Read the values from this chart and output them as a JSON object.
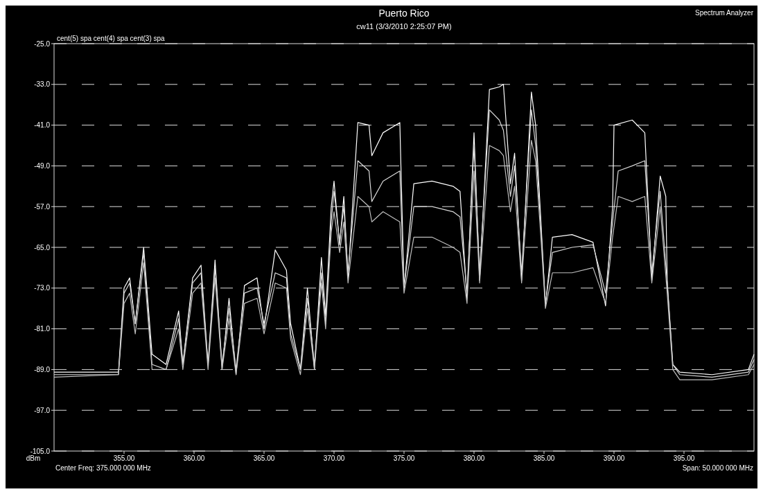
{
  "chart_data": {
    "type": "line",
    "title": "Puerto Rico",
    "subtitle": "cw11 (3/3/2010 2:25:07 PM)",
    "ylabel": "dBm",
    "annotations": [
      "Spectrum Analyzer",
      "cent(5) spa  cent(4) spa  cent(3) spa",
      "Center Freq: 375.000 000 MHz",
      "Span: 50.000 000 MHz"
    ],
    "xlim": [
      350,
      400
    ],
    "xticks": [
      {
        "value": 355,
        "label": "355.00"
      },
      {
        "value": 360,
        "label": "360.00"
      },
      {
        "value": 365,
        "label": "365.00"
      },
      {
        "value": 370,
        "label": "370.00"
      },
      {
        "value": 375,
        "label": "375.00"
      },
      {
        "value": 380,
        "label": "380.00"
      },
      {
        "value": 385,
        "label": "385.00"
      },
      {
        "value": 390,
        "label": "390.00"
      },
      {
        "value": 395,
        "label": "395.00"
      }
    ],
    "ylim": [
      -105,
      -25
    ],
    "yticks": [
      {
        "value": -25,
        "label": "-25.0"
      },
      {
        "value": -33,
        "label": "-33.0"
      },
      {
        "value": -41,
        "label": "-41.0"
      },
      {
        "value": -49,
        "label": "-49.0"
      },
      {
        "value": -57,
        "label": "-57.0"
      },
      {
        "value": -65,
        "label": "-65.0"
      },
      {
        "value": -73,
        "label": "-73.0"
      },
      {
        "value": -81,
        "label": "-81.0"
      },
      {
        "value": -89,
        "label": "-89.0"
      },
      {
        "value": -97,
        "label": "-97.0"
      },
      {
        "value": -105,
        "label": "-105.0"
      }
    ],
    "grid": "y",
    "line_style": "solid",
    "series": [
      {
        "color": "#ffffff",
        "x": [
          350,
          354.6,
          355,
          355.4,
          355.8,
          356.4,
          357,
          358,
          358.9,
          359.2,
          359.9,
          360.5,
          361,
          361.5,
          362,
          362.5,
          363,
          363.6,
          364.5,
          365,
          365.8,
          366.6,
          366.9,
          367.6,
          368.1,
          368.6,
          369.1,
          369.4,
          369.8,
          370,
          370.4,
          370.7,
          371,
          371.7,
          372.5,
          372.7,
          373.5,
          374.7,
          375,
          375.7,
          377,
          378.5,
          379,
          379.5,
          380,
          380.4,
          381.1,
          381.8,
          382.1,
          382.6,
          382.9,
          383.4,
          384.1,
          384.4,
          384.8,
          385.1,
          385.6,
          387,
          388.5,
          389.4,
          389.9,
          390,
          391.3,
          392.2,
          392.7,
          393.3,
          393.7,
          393.8,
          394.2,
          394.7,
          397,
          399.6,
          400
        ],
        "values": [
          -89.5,
          -89.5,
          -73,
          -71,
          -80,
          -65,
          -86,
          -88,
          -77.5,
          -88,
          -71,
          -68.5,
          -88,
          -67.5,
          -89,
          -75,
          -90,
          -72.5,
          -71,
          -81,
          -65.5,
          -69.5,
          -80,
          -89,
          -73,
          -89,
          -67,
          -78.5,
          -57,
          -52,
          -64.5,
          -55,
          -71,
          -40.5,
          -41,
          -47,
          -42.5,
          -40.5,
          -73,
          -52.5,
          -52,
          -53,
          -54,
          -75,
          -42.5,
          -71.5,
          -34,
          -33.5,
          -33,
          -52.5,
          -46.5,
          -71.5,
          -34.5,
          -41,
          -61,
          -76.5,
          -63,
          -62.5,
          -64,
          -76.5,
          -57,
          -41,
          -40,
          -42.5,
          -71.5,
          -51,
          -55,
          -71.5,
          -88,
          -89.5,
          -90,
          -89,
          -86
        ]
      },
      {
        "color": "#d9d9d9",
        "x": [
          350,
          354.6,
          355,
          355.4,
          355.8,
          356.4,
          357,
          358,
          358.9,
          359.2,
          359.9,
          360.5,
          361,
          361.5,
          362,
          362.5,
          363,
          363.6,
          364.5,
          365,
          365.8,
          366.6,
          366.9,
          367.6,
          368.1,
          368.6,
          369.1,
          369.4,
          369.8,
          370,
          370.4,
          370.7,
          371,
          371.7,
          372.5,
          372.7,
          373.5,
          374.7,
          375,
          375.7,
          377,
          378.5,
          379,
          379.5,
          380,
          380.4,
          381.1,
          381.8,
          382.1,
          382.6,
          382.9,
          383.4,
          384.1,
          384.4,
          384.8,
          385.1,
          385.6,
          387,
          388.5,
          389.4,
          389.9,
          390.3,
          391.3,
          392.2,
          392.7,
          393.3,
          393.8,
          394.2,
          394.7,
          397,
          399.6,
          400
        ],
        "values": [
          -90,
          -90,
          -74,
          -72,
          -80,
          -66,
          -88,
          -89,
          -79,
          -88,
          -72,
          -70,
          -88,
          -69,
          -88,
          -77,
          -89,
          -74,
          -73,
          -80,
          -70,
          -71,
          -82,
          -89,
          -75,
          -88,
          -70,
          -80,
          -60,
          -54,
          -64,
          -57,
          -70,
          -48,
          -50,
          -56,
          -52,
          -50,
          -73,
          -57,
          -57,
          -58,
          -59,
          -74,
          -45,
          -70,
          -38,
          -40,
          -42,
          -55,
          -49,
          -70,
          -38,
          -45,
          -62,
          -76,
          -66,
          -65,
          -64.5,
          -74,
          -60,
          -50,
          -49,
          -48,
          -70,
          -54,
          -72,
          -88,
          -90,
          -90.5,
          -89.5,
          -87
        ]
      },
      {
        "color": "#bfbfbf",
        "x": [
          350,
          354.6,
          355,
          355.4,
          355.8,
          356.4,
          357,
          358,
          358.9,
          359.2,
          359.9,
          360.5,
          361,
          361.5,
          362,
          362.5,
          363,
          363.6,
          364.5,
          365,
          365.8,
          366.6,
          366.9,
          367.6,
          368.1,
          368.6,
          369.1,
          369.4,
          369.8,
          370,
          370.4,
          370.7,
          371,
          371.7,
          372.5,
          372.7,
          373.5,
          374.7,
          375,
          375.7,
          377,
          378.5,
          379,
          379.5,
          380,
          380.4,
          381.1,
          381.8,
          382.1,
          382.6,
          382.9,
          383.4,
          384.1,
          384.4,
          384.8,
          385.1,
          385.6,
          387,
          388.5,
          389.4,
          389.9,
          390.3,
          391.3,
          392.2,
          392.7,
          393.3,
          393.8,
          394.2,
          394.7,
          397,
          399.6,
          400
        ],
        "values": [
          -90.5,
          -90,
          -76,
          -74,
          -82,
          -68,
          -89,
          -89,
          -81,
          -89,
          -74,
          -72,
          -89,
          -71,
          -89,
          -79,
          -90,
          -76,
          -75,
          -82,
          -72,
          -73,
          -83,
          -90,
          -77,
          -89,
          -72,
          -81,
          -62,
          -58,
          -66,
          -60,
          -72,
          -55,
          -57,
          -60,
          -58,
          -60,
          -74,
          -63,
          -63,
          -65,
          -66,
          -76,
          -50,
          -72,
          -45,
          -46,
          -47,
          -58,
          -53,
          -72,
          -44,
          -48,
          -64,
          -77,
          -70,
          -70,
          -69,
          -76,
          -63,
          -55,
          -56,
          -55,
          -72,
          -57,
          -74,
          -89,
          -91,
          -91,
          -90,
          -88
        ]
      }
    ]
  }
}
